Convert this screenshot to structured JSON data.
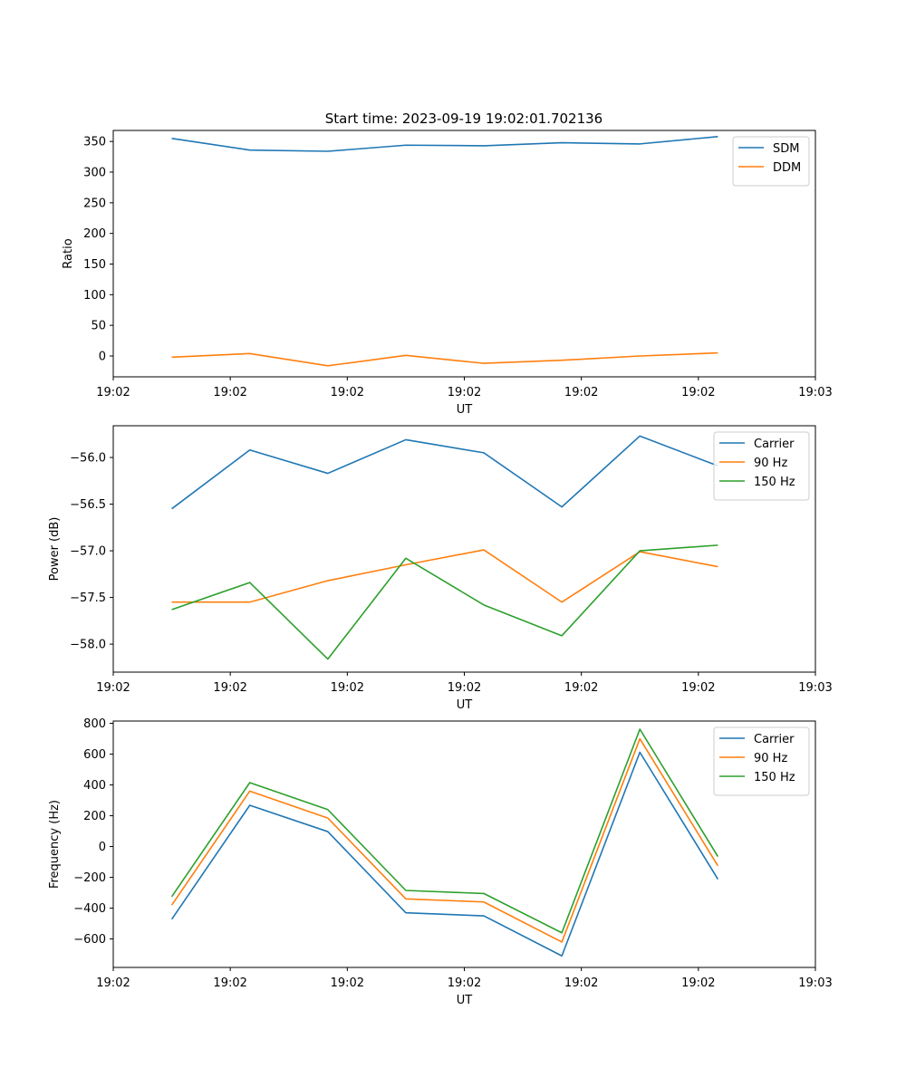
{
  "figure": {
    "title": "Start time: 2023-09-19 19:02:01.702136"
  },
  "chart_data": [
    {
      "type": "line",
      "title": "Start time: 2023-09-19 19:02:01.702136",
      "xlabel": "UT",
      "ylabel": "Ratio",
      "xlim": [
        0,
        9
      ],
      "x_tick_values": [
        0,
        1.5,
        3,
        4.5,
        6,
        7.5,
        9
      ],
      "x_tick_labels": [
        "19:02",
        "19:02",
        "19:02",
        "19:02",
        "19:02",
        "19:02",
        "19:03"
      ],
      "ylim": [
        -34,
        368
      ],
      "y_ticks": [
        0,
        50,
        100,
        150,
        200,
        250,
        300,
        350
      ],
      "x": [
        0.75,
        1.75,
        2.75,
        3.75,
        4.75,
        5.75,
        6.75,
        7.75
      ],
      "legend_position": "top-right",
      "series": [
        {
          "name": "SDM",
          "color": "#1f77b4",
          "values": [
            355,
            336,
            334,
            344,
            343,
            348,
            346,
            358
          ]
        },
        {
          "name": "DDM",
          "color": "#ff7f0e",
          "values": [
            -2,
            4,
            -16,
            1,
            -12,
            -7,
            0,
            5
          ]
        }
      ]
    },
    {
      "type": "line",
      "xlabel": "UT",
      "ylabel": "Power (dB)",
      "xlim": [
        0,
        9
      ],
      "x_tick_values": [
        0,
        1.5,
        3,
        4.5,
        6,
        7.5,
        9
      ],
      "x_tick_labels": [
        "19:02",
        "19:02",
        "19:02",
        "19:02",
        "19:02",
        "19:02",
        "19:03"
      ],
      "ylim": [
        -58.3,
        -55.66
      ],
      "y_ticks": [
        -58.0,
        -57.5,
        -57.0,
        -56.5,
        -56.0
      ],
      "y_tick_labels": [
        "−58.0",
        "−57.5",
        "−57.0",
        "−56.5",
        "−56.0"
      ],
      "x": [
        0.75,
        1.75,
        2.75,
        3.75,
        4.75,
        5.75,
        6.75,
        7.75
      ],
      "legend_position": "top-right",
      "series": [
        {
          "name": "Carrier",
          "color": "#1f77b4",
          "values": [
            -56.55,
            -55.92,
            -56.17,
            -55.81,
            -55.95,
            -56.53,
            -55.77,
            -56.09
          ]
        },
        {
          "name": "90 Hz",
          "color": "#ff7f0e",
          "values": [
            -57.55,
            -57.55,
            -57.32,
            -57.15,
            -56.99,
            -57.55,
            -57.01,
            -57.17
          ]
        },
        {
          "name": "150 Hz",
          "color": "#2ca02c",
          "values": [
            -57.63,
            -57.34,
            -58.16,
            -57.08,
            -57.58,
            -57.91,
            -57.0,
            -56.94
          ]
        }
      ]
    },
    {
      "type": "line",
      "xlabel": "UT",
      "ylabel": "Frequency (Hz)",
      "xlim": [
        0,
        9
      ],
      "x_tick_values": [
        0,
        1.5,
        3,
        4.5,
        6,
        7.5,
        9
      ],
      "x_tick_labels": [
        "19:02",
        "19:02",
        "19:02",
        "19:02",
        "19:02",
        "19:02",
        "19:03"
      ],
      "ylim": [
        -785,
        815
      ],
      "y_ticks": [
        -600,
        -400,
        -200,
        0,
        200,
        400,
        600,
        800
      ],
      "y_tick_labels": [
        "−600",
        "−400",
        "−200",
        "0",
        "200",
        "400",
        "600",
        "800"
      ],
      "x": [
        0.75,
        1.75,
        2.75,
        3.75,
        4.75,
        5.75,
        6.75,
        7.75
      ],
      "legend_position": "top-right",
      "series": [
        {
          "name": "Carrier",
          "color": "#1f77b4",
          "values": [
            -472,
            268,
            97,
            -430,
            -450,
            -710,
            612,
            -212
          ]
        },
        {
          "name": "90 Hz",
          "color": "#ff7f0e",
          "values": [
            -380,
            360,
            185,
            -340,
            -360,
            -620,
            700,
            -125
          ]
        },
        {
          "name": "150 Hz",
          "color": "#2ca02c",
          "values": [
            -325,
            415,
            240,
            -285,
            -305,
            -560,
            762,
            -65
          ]
        }
      ]
    }
  ]
}
